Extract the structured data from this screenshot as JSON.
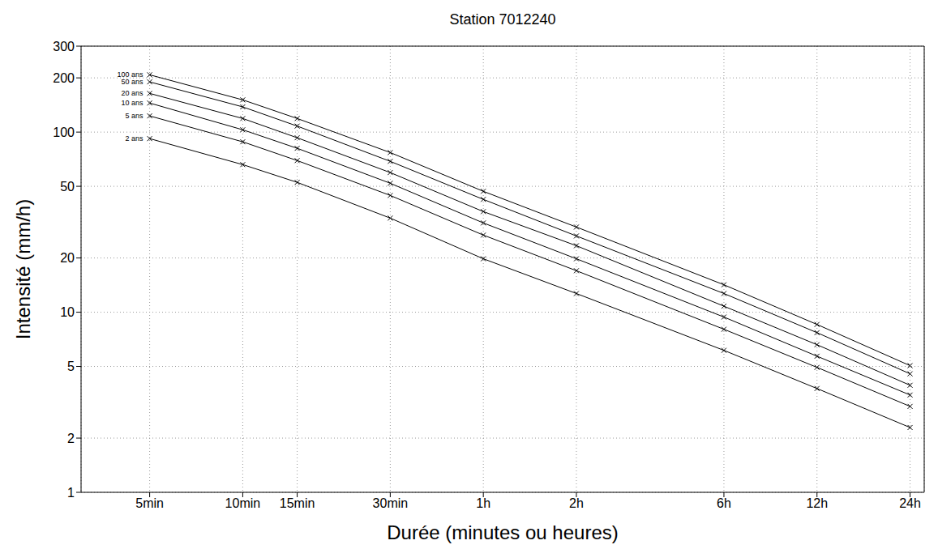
{
  "chart_data": {
    "type": "line",
    "title": "Station 7012240",
    "x_label": "Durée (minutes ou heures)",
    "y_label": "Intensité (mm/h)",
    "x": [
      5,
      10,
      15,
      30,
      60,
      120,
      360,
      720,
      1440
    ],
    "xlim": [
      3,
      1600
    ],
    "xticks": [
      {
        "value": 5,
        "label": "5min"
      },
      {
        "value": 10,
        "label": "10min"
      },
      {
        "value": 15,
        "label": "15min"
      },
      {
        "value": 30,
        "label": "30min"
      },
      {
        "value": 60,
        "label": "1h"
      },
      {
        "value": 120,
        "label": "2h"
      },
      {
        "value": 360,
        "label": "6h"
      },
      {
        "value": 720,
        "label": "12h"
      },
      {
        "value": 1440,
        "label": "24h"
      }
    ],
    "ylim": [
      1,
      300
    ],
    "yticks": [
      1,
      2,
      5,
      10,
      20,
      50,
      100,
      200,
      300
    ],
    "log": true,
    "grid": true,
    "marker": "x",
    "line_style": "solid",
    "series": [
      {
        "name": "100 ans",
        "color": "#000000",
        "values": [
          208,
          151,
          119,
          77,
          46.9,
          29.7,
          14.2,
          8.55,
          5.05
        ]
      },
      {
        "name": "50 ans",
        "color": "#000000",
        "values": [
          190,
          138,
          108,
          68.8,
          42.3,
          26.5,
          12.7,
          7.7,
          4.55
        ]
      },
      {
        "name": "20 ans",
        "color": "#000000",
        "values": [
          164,
          119,
          93,
          59.6,
          36.2,
          23.4,
          10.8,
          6.6,
          3.93
        ]
      },
      {
        "name": "10 ans",
        "color": "#000000",
        "values": [
          145,
          103,
          81.3,
          52,
          31.3,
          19.8,
          9.4,
          5.7,
          3.47
        ]
      },
      {
        "name": "5 ans",
        "color": "#000000",
        "values": [
          123,
          88.3,
          69.5,
          44.5,
          26.8,
          17,
          8.04,
          4.94,
          3.0
        ]
      },
      {
        "name": "2 ans",
        "color": "#000000",
        "values": [
          92,
          66,
          52.6,
          33.3,
          19.8,
          12.7,
          6.14,
          3.77,
          2.29
        ]
      }
    ]
  }
}
